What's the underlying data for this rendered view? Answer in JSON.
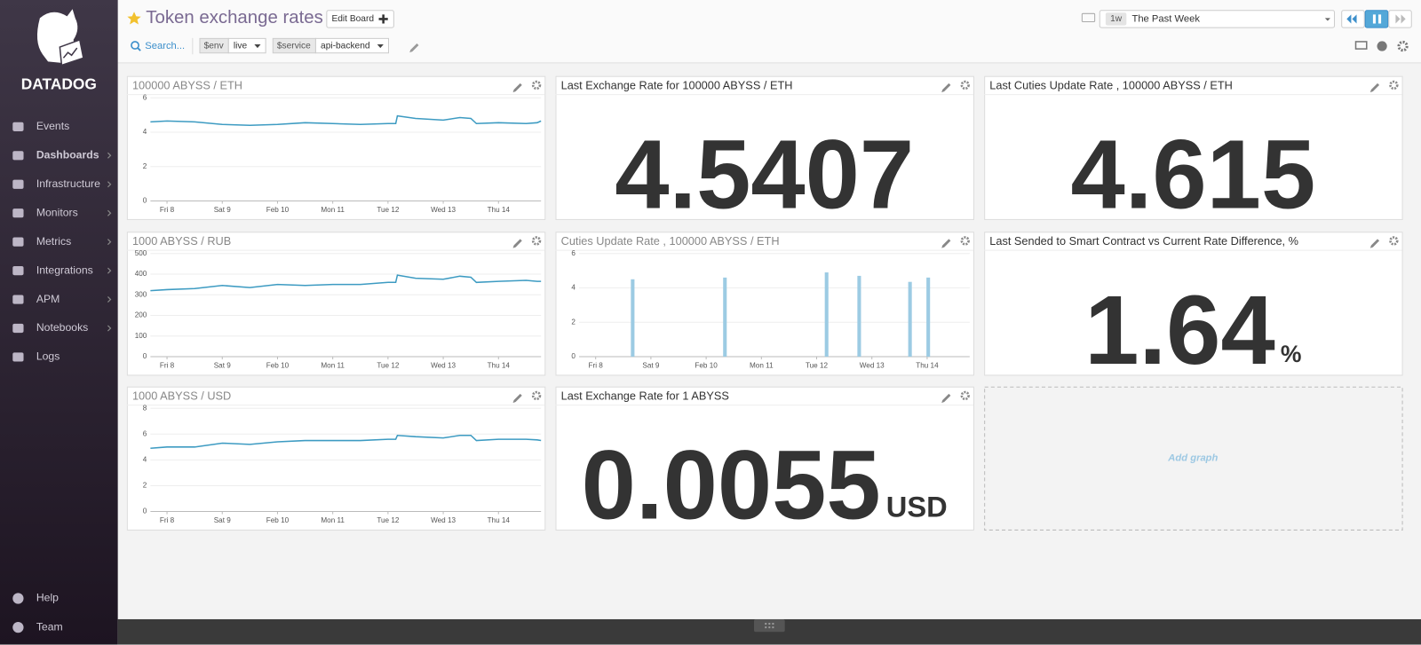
{
  "sidebar": {
    "logo": "DATADOG",
    "nav": [
      "Events",
      "Dashboards",
      "Infrastructure",
      "Monitors",
      "Metrics",
      "Integrations",
      "APM",
      "Notebooks",
      "Logs"
    ],
    "footer": [
      "Help",
      "Team"
    ]
  },
  "header": {
    "title": "Token exchange rates",
    "edit_button": "Edit Board",
    "search": "Search...",
    "variables": [
      {
        "name": "$env",
        "value": "live"
      },
      {
        "name": "$service",
        "value": "api-backend"
      }
    ],
    "timeframe": {
      "badge": "1w",
      "label": "The Past Week"
    }
  },
  "chart_data": [
    {
      "type": "line",
      "title": "100000 ABYSS / ETH",
      "color": "#3d9bc2",
      "x": [
        -0.3,
        0,
        0.5,
        1,
        1.5,
        2,
        2.5,
        3,
        3.5,
        4,
        4.14,
        4.17,
        4.5,
        5,
        5.3,
        5.5,
        5.6,
        6,
        6.5,
        6.7,
        6.77
      ],
      "values": [
        4.6,
        4.65,
        4.6,
        4.45,
        4.4,
        4.45,
        4.55,
        4.5,
        4.45,
        4.5,
        4.5,
        4.95,
        4.8,
        4.7,
        4.85,
        4.8,
        4.5,
        4.55,
        4.5,
        4.55,
        4.65
      ],
      "xlim": [
        -0.3,
        6.77
      ],
      "xticks": [
        {
          "value": 0,
          "label": "Fri 8"
        },
        {
          "value": 1,
          "label": "Sat 9"
        },
        {
          "value": 2,
          "label": "Feb 10"
        },
        {
          "value": 3,
          "label": "Mon 11"
        },
        {
          "value": 4,
          "label": "Tue 12"
        },
        {
          "value": 5,
          "label": "Wed 13"
        },
        {
          "value": 6,
          "label": "Thu 14"
        }
      ],
      "ylim": [
        0,
        6
      ],
      "yticks": [
        0,
        2,
        4,
        6
      ],
      "grid": true
    },
    {
      "type": "line",
      "title": "1000 ABYSS / RUB",
      "color": "#3d9bc2",
      "x": [
        -0.3,
        0,
        0.5,
        1,
        1.5,
        2,
        2.5,
        3,
        3.5,
        4,
        4.14,
        4.17,
        4.5,
        5,
        5.3,
        5.5,
        5.6,
        6,
        6.5,
        6.7,
        6.77
      ],
      "values": [
        320,
        325,
        330,
        345,
        335,
        350,
        345,
        350,
        350,
        360,
        360,
        395,
        380,
        375,
        390,
        385,
        360,
        365,
        370,
        365,
        365
      ],
      "xlim": [
        -0.3,
        6.77
      ],
      "xticks": [
        {
          "value": 0,
          "label": "Fri 8"
        },
        {
          "value": 1,
          "label": "Sat 9"
        },
        {
          "value": 2,
          "label": "Feb 10"
        },
        {
          "value": 3,
          "label": "Mon 11"
        },
        {
          "value": 4,
          "label": "Tue 12"
        },
        {
          "value": 5,
          "label": "Wed 13"
        },
        {
          "value": 6,
          "label": "Thu 14"
        }
      ],
      "ylim": [
        0,
        500
      ],
      "yticks": [
        0,
        100,
        200,
        300,
        400,
        500
      ],
      "grid": true
    },
    {
      "type": "line",
      "title": "1000 ABYSS / USD",
      "color": "#3d9bc2",
      "x": [
        -0.3,
        0,
        0.5,
        1,
        1.5,
        2,
        2.5,
        3,
        3.5,
        4,
        4.14,
        4.17,
        4.5,
        5,
        5.3,
        5.5,
        5.6,
        6,
        6.5,
        6.7,
        6.77
      ],
      "values": [
        4.9,
        5.0,
        5.0,
        5.3,
        5.2,
        5.4,
        5.5,
        5.5,
        5.5,
        5.6,
        5.6,
        5.9,
        5.8,
        5.7,
        5.9,
        5.9,
        5.5,
        5.6,
        5.6,
        5.55,
        5.5
      ],
      "xlim": [
        -0.3,
        6.77
      ],
      "xticks": [
        {
          "value": 0,
          "label": "Fri 8"
        },
        {
          "value": 1,
          "label": "Sat 9"
        },
        {
          "value": 2,
          "label": "Feb 10"
        },
        {
          "value": 3,
          "label": "Mon 11"
        },
        {
          "value": 4,
          "label": "Tue 12"
        },
        {
          "value": 5,
          "label": "Wed 13"
        },
        {
          "value": 6,
          "label": "Thu 14"
        }
      ],
      "ylim": [
        0,
        8
      ],
      "yticks": [
        0,
        2,
        4,
        6,
        8
      ],
      "grid": true
    },
    {
      "type": "bar",
      "title": "Cuties Update Rate , 100000 ABYSS / ETH",
      "color": "#9ccbe3",
      "x": [
        0.67,
        2.34,
        4.18,
        4.77,
        5.69,
        6.02
      ],
      "values": [
        4.5,
        4.6,
        4.9,
        4.7,
        4.35,
        4.6
      ],
      "xlim": [
        -0.3,
        6.77
      ],
      "xticks": [
        {
          "value": 0,
          "label": "Fri 8"
        },
        {
          "value": 1,
          "label": "Sat 9"
        },
        {
          "value": 2,
          "label": "Feb 10"
        },
        {
          "value": 3,
          "label": "Mon 11"
        },
        {
          "value": 4,
          "label": "Tue 12"
        },
        {
          "value": 5,
          "label": "Wed 13"
        },
        {
          "value": 6,
          "label": "Thu 14"
        }
      ],
      "ylim": [
        0,
        6
      ],
      "yticks": [
        0,
        2,
        4,
        6
      ],
      "grid": true
    }
  ],
  "query_values": [
    {
      "title": "Last Exchange Rate for 100000 ABYSS / ETH",
      "value": 4.5407
    },
    {
      "title": "Last Cuties Update Rate , 100000 ABYSS / ETH",
      "value": 4.615
    },
    {
      "title": "Last Sended to Smart Contract vs Current Rate Difference, %",
      "value": 1.64,
      "unit": "%"
    },
    {
      "title": "Last Exchange Rate for 1 ABYSS",
      "value": 0.0055,
      "unit": "USD"
    }
  ],
  "add_graph": "Add graph"
}
